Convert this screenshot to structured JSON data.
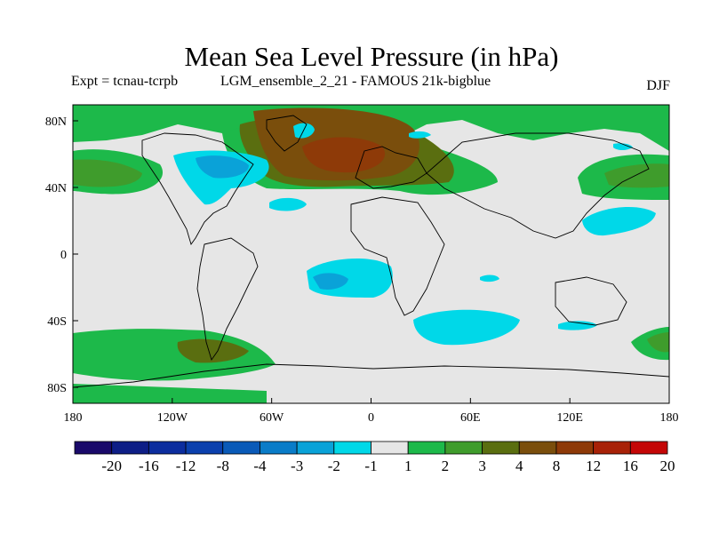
{
  "title": "Mean Sea Level Pressure (in hPa)",
  "expt_label": "Expt = tcnau-tcrpb",
  "model_label": "LGM_ensemble_2_21 - FAMOUS 21k-bigblue",
  "season": "DJF",
  "lat_ticks": [
    "80N",
    "40N",
    "0",
    "40S",
    "80S"
  ],
  "lon_ticks": [
    "180",
    "120W",
    "60W",
    "0",
    "60E",
    "120E",
    "180"
  ],
  "colorbar": {
    "labels": [
      "-20",
      "-16",
      "-12",
      "-8",
      "-4",
      "-3",
      "-2",
      "-1",
      "1",
      "2",
      "3",
      "4",
      "8",
      "12",
      "16",
      "20"
    ],
    "colors": [
      "#1a0a6a",
      "#0e1e86",
      "#0c2d9e",
      "#0b40ad",
      "#0a5ab8",
      "#0a7cc8",
      "#0aa2d8",
      "#00d8e8",
      "#e6e6e6",
      "#1db94a",
      "#3f9c2c",
      "#5a6e10",
      "#7a4e0c",
      "#8e3a08",
      "#a82208",
      "#c40606"
    ]
  },
  "colors": {
    "land_mask": "#e6e6e6",
    "coastline": "#000000"
  }
}
